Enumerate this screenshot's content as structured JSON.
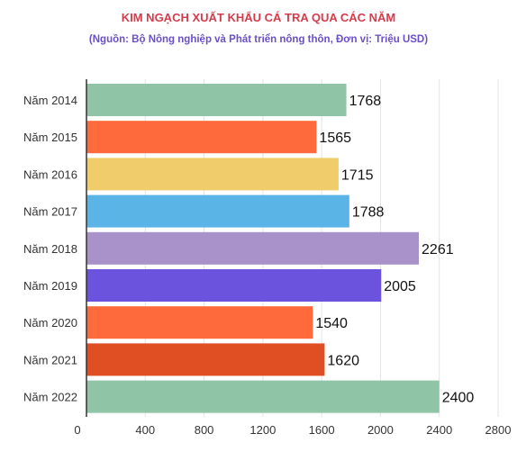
{
  "chart_data": {
    "type": "bar",
    "orientation": "horizontal",
    "title": "KIM NGẠCH XUẤT KHẨU CÁ TRA QUA CÁC NĂM",
    "subtitle": "(Nguồn: Bộ Nông nghiệp và Phát triển nông thôn, Đơn vị: Triệu USD)",
    "categories": [
      "Năm 2014",
      "Năm 2015",
      "Năm 2016",
      "Năm 2017",
      "Năm 2018",
      "Năm 2019",
      "Năm 2020",
      "Năm 2021",
      "Năm 2022"
    ],
    "values": [
      1768,
      1565,
      1715,
      1788,
      2261,
      2005,
      1540,
      1620,
      2400
    ],
    "colors": [
      "#8fc4a6",
      "#ff6a3d",
      "#f0cd6a",
      "#5ab4e6",
      "#a991c9",
      "#6b53dd",
      "#ff6a3d",
      "#e04e23",
      "#8fc4a6"
    ],
    "xlim": [
      0,
      2800
    ],
    "xticks": [
      0,
      400,
      800,
      1200,
      1600,
      2000,
      2400,
      2800
    ],
    "grid": true
  }
}
